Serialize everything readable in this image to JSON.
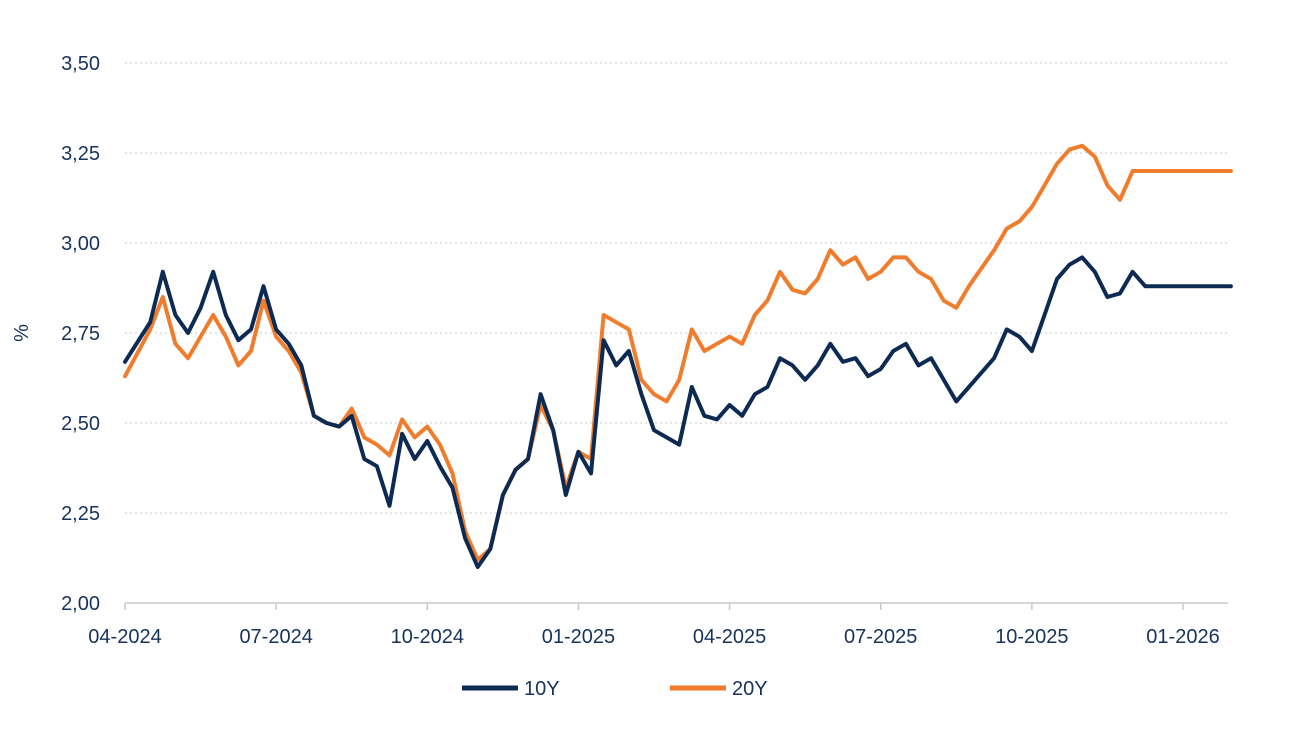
{
  "chart_data": {
    "type": "line",
    "title": "",
    "xlabel": "",
    "ylabel": "%",
    "ylim": [
      2.0,
      3.5
    ],
    "yticks": [
      2.0,
      2.25,
      2.5,
      2.75,
      3.0,
      3.25,
      3.5
    ],
    "ytick_labels": [
      "2,00",
      "2,25",
      "2,50",
      "2,75",
      "3,00",
      "3,25",
      "3,50"
    ],
    "xlim": [
      0,
      22
    ],
    "xticks": [
      0,
      3,
      6,
      9,
      12,
      15,
      18,
      21
    ],
    "xtick_labels": [
      "04-2024",
      "07-2024",
      "10-2024",
      "01-2025",
      "04-2025",
      "07-2025",
      "10-2025",
      "01-2026"
    ],
    "grid": true,
    "legend_position": "bottom-center",
    "x_unit": "months since 04-2024",
    "x": [
      0,
      0.5,
      0.75,
      1,
      1.25,
      1.5,
      1.75,
      2,
      2.25,
      2.5,
      2.75,
      3,
      3.25,
      3.5,
      3.75,
      4,
      4.25,
      4.5,
      4.75,
      5,
      5.25,
      5.5,
      5.75,
      6,
      6.25,
      6.5,
      6.75,
      7,
      7.25,
      7.5,
      7.75,
      8,
      8.25,
      8.5,
      8.75,
      9,
      9.25,
      9.5,
      9.75,
      10,
      10.25,
      10.5,
      10.75,
      11,
      11.25,
      11.5,
      11.75,
      12,
      12.25,
      12.5,
      12.75,
      13,
      13.25,
      13.5,
      13.75,
      14,
      14.25,
      14.5,
      14.75,
      15,
      15.25,
      15.5,
      15.75,
      16,
      16.25,
      16.5,
      16.75,
      17,
      17.25,
      17.5,
      17.75,
      18,
      18.25,
      18.5,
      18.75,
      19,
      19.25,
      19.5,
      19.75,
      20,
      20.25,
      20.5,
      20.75,
      21,
      21.25,
      21.5,
      21.75,
      21.95
    ],
    "series": [
      {
        "name": "10Y",
        "color": "#0d2b52",
        "values": [
          2.67,
          2.78,
          2.92,
          2.8,
          2.75,
          2.82,
          2.92,
          2.8,
          2.73,
          2.76,
          2.88,
          2.76,
          2.72,
          2.66,
          2.52,
          2.5,
          2.49,
          2.52,
          2.4,
          2.38,
          2.27,
          2.47,
          2.4,
          2.45,
          2.38,
          2.32,
          2.18,
          2.1,
          2.15,
          2.3,
          2.37,
          2.4,
          2.58,
          2.48,
          2.3,
          2.42,
          2.36,
          2.73,
          2.66,
          2.7,
          2.58,
          2.48,
          2.46,
          2.44,
          2.6,
          2.52,
          2.51,
          2.55,
          2.52,
          2.58,
          2.6,
          2.68,
          2.66,
          2.62,
          2.66,
          2.72,
          2.67,
          2.68,
          2.63,
          2.65,
          2.7,
          2.72,
          2.66,
          2.68,
          2.62,
          2.56,
          2.6,
          2.64,
          2.68,
          2.76,
          2.74,
          2.7,
          2.8,
          2.9,
          2.94,
          2.96,
          2.92,
          2.85,
          2.86,
          2.92,
          2.88,
          2.88,
          2.88,
          2.88,
          2.88,
          2.88,
          2.88,
          2.88
        ]
      },
      {
        "name": "20Y",
        "color": "#ef7d2d",
        "values": [
          2.63,
          2.76,
          2.85,
          2.72,
          2.68,
          2.74,
          2.8,
          2.74,
          2.66,
          2.7,
          2.84,
          2.74,
          2.7,
          2.64,
          2.52,
          2.5,
          2.49,
          2.54,
          2.46,
          2.44,
          2.41,
          2.51,
          2.46,
          2.49,
          2.44,
          2.36,
          2.2,
          2.12,
          2.15,
          2.3,
          2.37,
          2.4,
          2.55,
          2.48,
          2.32,
          2.42,
          2.4,
          2.8,
          2.78,
          2.76,
          2.62,
          2.58,
          2.56,
          2.62,
          2.76,
          2.7,
          2.72,
          2.74,
          2.72,
          2.8,
          2.84,
          2.92,
          2.87,
          2.86,
          2.9,
          2.98,
          2.94,
          2.96,
          2.9,
          2.92,
          2.96,
          2.96,
          2.92,
          2.9,
          2.84,
          2.82,
          2.88,
          2.93,
          2.98,
          3.04,
          3.06,
          3.1,
          3.16,
          3.22,
          3.26,
          3.27,
          3.24,
          3.16,
          3.12,
          3.2,
          3.2,
          3.2,
          3.2,
          3.2,
          3.2,
          3.2,
          3.2,
          3.2
        ]
      }
    ]
  }
}
